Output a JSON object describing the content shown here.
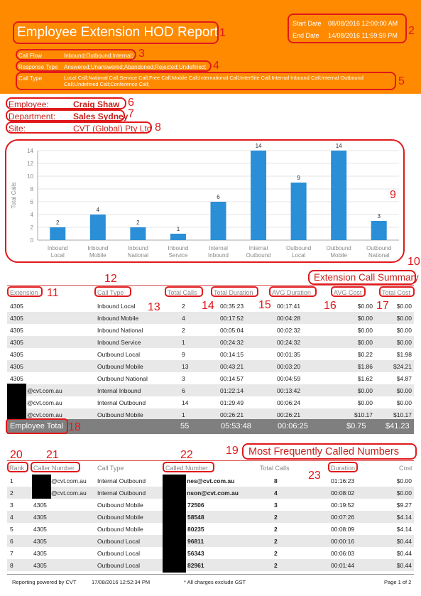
{
  "header": {
    "title": "Employee Extension HOD Report",
    "start_label": "Start Date",
    "start_value": "08/08/2016 12:00:00 AM",
    "end_label": "End Date",
    "end_value": "14/08/2016 11:59:59 PM",
    "call_flow_label": "Call Flow",
    "call_flow_value": "Inbound;Outbound;Internal;",
    "response_type_label": "Response Type",
    "response_type_value": "Answered;Unanswered;Abandoned;Rejected;Undefined;",
    "call_type_label": "Call Type",
    "call_type_value_1": "Local Call;National Call;Service Call;Free Call;Mobile Call;International Call;InterSite Call;Internal Inbound Call;Internal Outbound",
    "call_type_value_2": "Call;Undefined Call;Conference Call;"
  },
  "annotations": [
    "1",
    "2",
    "3",
    "4",
    "5",
    "6",
    "7",
    "8",
    "9",
    "10",
    "11",
    "12",
    "13",
    "14",
    "15",
    "16",
    "17",
    "18",
    "19",
    "20",
    "21",
    "22",
    "23"
  ],
  "employee": {
    "label": "Employee:",
    "value": "Craig Shaw"
  },
  "department": {
    "label": "Department:",
    "value": "Sales Sydney"
  },
  "site": {
    "label": "Site:",
    "value": "CVT (Global) Pty Ltd"
  },
  "chart_data": {
    "type": "bar",
    "ylabel": "Total Calls",
    "ylim": [
      0,
      14
    ],
    "yticks": [
      "0",
      "2",
      "4",
      "6",
      "8",
      "10",
      "12",
      "14"
    ],
    "categories": [
      [
        "Inbound",
        "Local"
      ],
      [
        "Inbound",
        "Mobile"
      ],
      [
        "Inbound",
        "National"
      ],
      [
        "Inbound",
        "Service"
      ],
      [
        "Internal",
        "Inbound"
      ],
      [
        "Internal",
        "Outbound"
      ],
      [
        "Outbound",
        "Local"
      ],
      [
        "Outbound",
        "Mobile"
      ],
      [
        "Outbound",
        "National"
      ]
    ],
    "values": [
      2,
      4,
      2,
      1,
      6,
      14,
      9,
      14,
      3
    ],
    "value_labels": [
      "2",
      "4",
      "2",
      "1",
      "6",
      "14",
      "9",
      "14",
      "3"
    ],
    "bar_color": "#2a8fd6"
  },
  "summary": {
    "title": "Extension Call Summary",
    "headers": [
      "Extension",
      "Call Type",
      "Total Calls",
      "Total Duration",
      "AVG Duration",
      "AVG Cost",
      "Total Cost"
    ],
    "rows": [
      [
        "4305",
        "Inbound Local",
        "2",
        "00:35:23",
        "00:17:41",
        "$0.00",
        "$0.00"
      ],
      [
        "4305",
        "Inbound Mobile",
        "4",
        "00:17:52",
        "00:04:28",
        "$0.00",
        "$0.00"
      ],
      [
        "4305",
        "Inbound National",
        "2",
        "00:05:04",
        "00:02:32",
        "$0.00",
        "$0.00"
      ],
      [
        "4305",
        "Inbound Service",
        "1",
        "00:24:32",
        "00:24:32",
        "$0.00",
        "$0.00"
      ],
      [
        "4305",
        "Outbound Local",
        "9",
        "00:14:15",
        "00:01:35",
        "$0.22",
        "$1.98"
      ],
      [
        "4305",
        "Outbound Mobile",
        "13",
        "00:43:21",
        "00:03:20",
        "$1.86",
        "$24.21"
      ],
      [
        "4305",
        "Outbound National",
        "3",
        "00:14:57",
        "00:04:59",
        "$1.62",
        "$4.87"
      ],
      [
        "@cvt.com.au",
        "Internal Inbound",
        "6",
        "01:22:14",
        "00:13:42",
        "$0.00",
        "$0.00"
      ],
      [
        "@cvt.com.au",
        "Internal Outbound",
        "14",
        "01:29:49",
        "00:06:24",
        "$0.00",
        "$0.00"
      ],
      [
        "@cvt.com.au",
        "Outbound Mobile",
        "1",
        "00:26:21",
        "00:26:21",
        "$10.17",
        "$10.17"
      ]
    ],
    "total": [
      "Employee Total",
      "55",
      "05:53:48",
      "00:06:25",
      "$0.75",
      "$41.23"
    ]
  },
  "frequent": {
    "title": "Most Frequently Called Numbers",
    "headers": [
      "Rank",
      "Caller Number",
      "Call Type",
      "Called Number",
      "Total Calls",
      "Duration",
      "Cost"
    ],
    "rows": [
      [
        "1",
        "@cvt.com.au",
        "Internal Outbound",
        "nes@cvt.com.au",
        "8",
        "01:16:23",
        "$0.00"
      ],
      [
        "2",
        "@cvt.com.au",
        "Internal Outbound",
        "nson@cvt.com.au",
        "4",
        "00:08:02",
        "$0.00"
      ],
      [
        "3",
        "4305",
        "Outbound Mobile",
        "72506",
        "3",
        "00:19:52",
        "$9.27"
      ],
      [
        "4",
        "4305",
        "Outbound Mobile",
        "58548",
        "2",
        "00:07:26",
        "$4.14"
      ],
      [
        "5",
        "4305",
        "Outbound Mobile",
        "80235",
        "2",
        "00:08:09",
        "$4.14"
      ],
      [
        "6",
        "4305",
        "Outbound Local",
        "96811",
        "2",
        "00:00:16",
        "$0.44"
      ],
      [
        "7",
        "4305",
        "Outbound Local",
        "56343",
        "2",
        "00:06:03",
        "$0.44"
      ],
      [
        "8",
        "4305",
        "Outbound Local",
        "82961",
        "2",
        "00:01:44",
        "$0.44"
      ]
    ]
  },
  "footer": {
    "powered": "Reporting powered by CVT",
    "timestamp": "17/08/2016 12:52:34 PM",
    "note": "* All charges exclude GST",
    "page": "Page 1 of 2"
  },
  "colors": {
    "header_bg": "#ff8a00",
    "annotation": "#e0191b",
    "bar": "#2a8fd6",
    "total_bg": "#7f7f7f"
  }
}
